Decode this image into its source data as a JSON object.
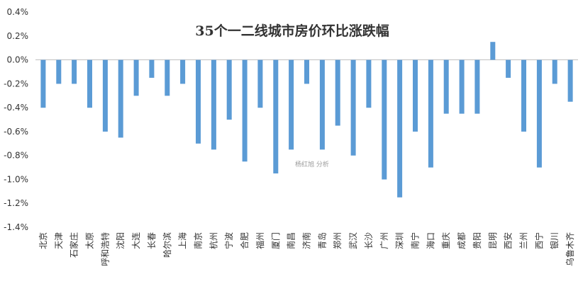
{
  "chart_data": {
    "type": "bar",
    "title": "35个一二线城市房价环比涨跌幅",
    "watermark": "杨红旭 分析",
    "ylim": [
      -1.4,
      0.4
    ],
    "yticks": [
      0.4,
      0.2,
      0.0,
      -0.2,
      -0.4,
      -0.6,
      -0.8,
      -1.0,
      -1.2,
      -1.4
    ],
    "ytick_labels": [
      "0.4%",
      "0.2%",
      "0.0%",
      "-0.2%",
      "-0.4%",
      "-0.6%",
      "-0.8%",
      "-1.0%",
      "-1.2%",
      "-1.4%"
    ],
    "grid": false,
    "bar_color": "#5B9BD5",
    "categories": [
      "北京",
      "天津",
      "石家庄",
      "太原",
      "呼和浩特",
      "沈阳",
      "大连",
      "长春",
      "哈尔滨",
      "上海",
      "南京",
      "杭州",
      "宁波",
      "合肥",
      "福州",
      "厦门",
      "南昌",
      "济南",
      "青岛",
      "郑州",
      "武汉",
      "长沙",
      "广州",
      "深圳",
      "南宁",
      "海口",
      "重庆",
      "成都",
      "贵阳",
      "昆明",
      "西安",
      "兰州",
      "西宁",
      "银川",
      "乌鲁木齐"
    ],
    "values": [
      -0.4,
      -0.2,
      -0.2,
      -0.4,
      -0.6,
      -0.65,
      -0.3,
      -0.15,
      -0.3,
      -0.2,
      -0.7,
      -0.75,
      -0.5,
      -0.85,
      -0.4,
      -0.95,
      -0.75,
      -0.2,
      -0.75,
      -0.55,
      -0.8,
      -0.4,
      -1.0,
      -1.15,
      -0.6,
      -0.9,
      -0.45,
      -0.45,
      -0.45,
      0.15,
      -0.15,
      -0.6,
      -0.9,
      -0.2,
      -0.35
    ]
  }
}
